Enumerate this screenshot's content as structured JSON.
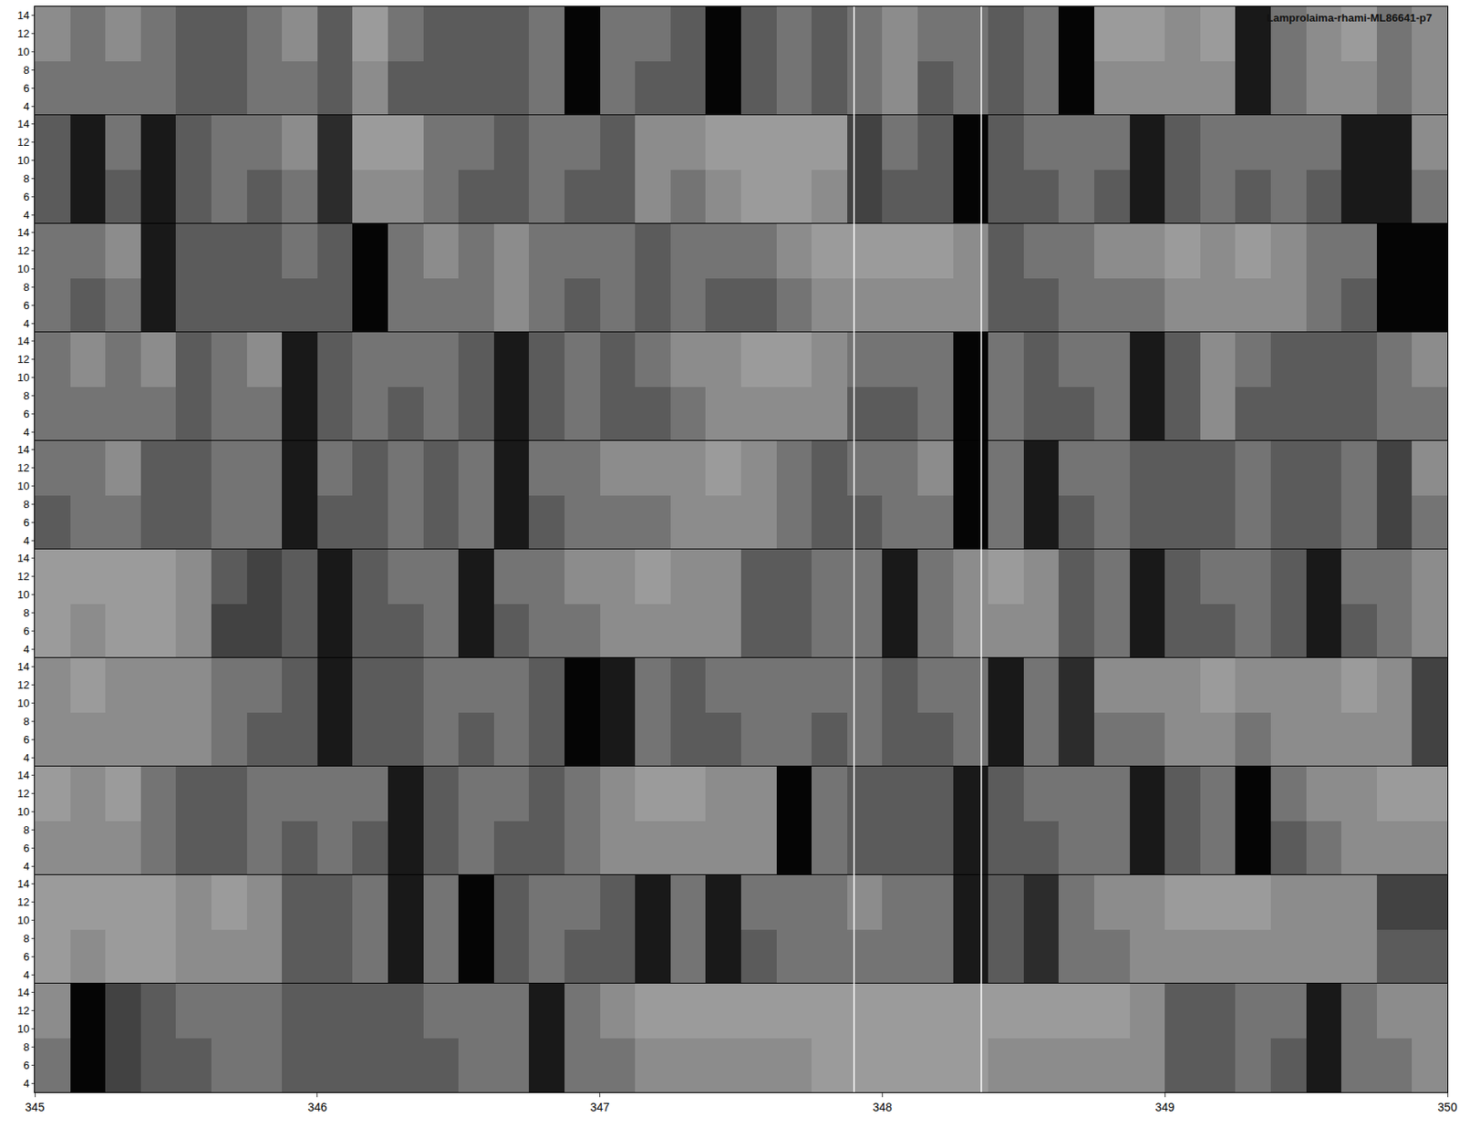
{
  "chart_data": {
    "type": "heatmap",
    "title": "Lamprolaima-rhami-ML86641-p7",
    "x": [
      345.0625,
      345.1875,
      345.3125,
      345.4375,
      345.5625,
      345.6875,
      345.8125,
      345.9375,
      346.0625,
      346.1875,
      346.3125,
      346.4375,
      346.5625,
      346.6875,
      346.8125,
      346.9375,
      347.0625,
      347.1875,
      347.3125,
      347.4375,
      347.5625,
      347.6875,
      347.8125,
      347.9375,
      348.0625,
      348.1875,
      348.3125,
      348.4375,
      348.5625,
      348.6875,
      348.8125,
      348.9375,
      349.0625,
      349.1875,
      349.3125,
      349.4375,
      349.5625,
      349.6875,
      349.8125,
      349.9375
    ],
    "y": [
      6,
      12
    ],
    "xlim": [
      345,
      350
    ],
    "xticks": [
      345,
      346,
      347,
      348,
      349,
      350
    ],
    "ylim": [
      3,
      15
    ],
    "yticks": [
      4,
      6,
      8,
      10,
      12,
      14
    ],
    "zlim": [
      0,
      9
    ],
    "vertical_lines": [
      347.9,
      348.35
    ],
    "panels": [
      {
        "z": [
          [
            4,
            4,
            4,
            4,
            5,
            5,
            4,
            4,
            5,
            3,
            5,
            5,
            5,
            5,
            4,
            9,
            4,
            5,
            5,
            9,
            5,
            4,
            5,
            4,
            3,
            5,
            4,
            5,
            4,
            9,
            3,
            3,
            3,
            3,
            8,
            4,
            3,
            3,
            4,
            3
          ],
          [
            3,
            4,
            3,
            4,
            5,
            5,
            4,
            3,
            5,
            2,
            4,
            5,
            5,
            5,
            4,
            9,
            4,
            4,
            5,
            9,
            5,
            4,
            5,
            4,
            3,
            4,
            4,
            5,
            4,
            9,
            2,
            2,
            3,
            2,
            8,
            4,
            3,
            2,
            4,
            3
          ]
        ]
      },
      {
        "z": [
          [
            5,
            8,
            5,
            8,
            5,
            4,
            5,
            4,
            7,
            3,
            3,
            4,
            5,
            5,
            4,
            5,
            5,
            3,
            4,
            3,
            2,
            2,
            3,
            6,
            5,
            5,
            9,
            5,
            5,
            4,
            5,
            8,
            5,
            4,
            5,
            4,
            5,
            8,
            8,
            4
          ],
          [
            5,
            8,
            4,
            8,
            5,
            4,
            4,
            3,
            7,
            2,
            2,
            4,
            4,
            5,
            4,
            4,
            5,
            3,
            3,
            2,
            2,
            2,
            2,
            6,
            4,
            5,
            9,
            5,
            4,
            4,
            4,
            8,
            5,
            4,
            4,
            4,
            4,
            8,
            8,
            3
          ]
        ]
      },
      {
        "z": [
          [
            4,
            5,
            4,
            8,
            5,
            5,
            5,
            5,
            5,
            9,
            4,
            4,
            4,
            3,
            4,
            5,
            4,
            5,
            4,
            5,
            5,
            4,
            3,
            3,
            3,
            3,
            3,
            5,
            5,
            4,
            4,
            4,
            3,
            3,
            3,
            3,
            4,
            5,
            9,
            9
          ],
          [
            4,
            4,
            3,
            8,
            5,
            5,
            5,
            4,
            5,
            9,
            4,
            3,
            4,
            3,
            4,
            4,
            4,
            5,
            4,
            4,
            4,
            3,
            2,
            2,
            2,
            2,
            3,
            5,
            4,
            4,
            3,
            3,
            2,
            3,
            2,
            3,
            4,
            4,
            9,
            9
          ]
        ]
      },
      {
        "z": [
          [
            4,
            4,
            4,
            4,
            5,
            4,
            4,
            8,
            5,
            4,
            5,
            4,
            5,
            8,
            5,
            4,
            5,
            5,
            4,
            3,
            3,
            3,
            3,
            5,
            5,
            4,
            9,
            4,
            5,
            5,
            4,
            8,
            5,
            3,
            5,
            5,
            5,
            5,
            4,
            4
          ],
          [
            4,
            3,
            4,
            3,
            5,
            4,
            3,
            8,
            5,
            4,
            4,
            4,
            5,
            8,
            5,
            4,
            5,
            4,
            3,
            3,
            2,
            2,
            3,
            4,
            4,
            4,
            9,
            4,
            5,
            4,
            4,
            8,
            5,
            3,
            4,
            5,
            5,
            5,
            4,
            3
          ]
        ]
      },
      {
        "z": [
          [
            5,
            4,
            4,
            5,
            5,
            4,
            4,
            8,
            5,
            5,
            4,
            5,
            4,
            8,
            5,
            4,
            4,
            4,
            3,
            3,
            3,
            4,
            5,
            5,
            4,
            4,
            9,
            4,
            8,
            5,
            4,
            5,
            5,
            5,
            4,
            5,
            5,
            4,
            6,
            4
          ],
          [
            4,
            4,
            3,
            5,
            5,
            4,
            4,
            8,
            4,
            5,
            4,
            5,
            4,
            8,
            4,
            4,
            3,
            3,
            3,
            2,
            3,
            4,
            5,
            4,
            4,
            3,
            9,
            4,
            8,
            4,
            4,
            5,
            5,
            5,
            4,
            5,
            5,
            4,
            6,
            3
          ]
        ]
      },
      {
        "z": [
          [
            2,
            3,
            2,
            2,
            3,
            6,
            6,
            5,
            8,
            5,
            5,
            4,
            8,
            5,
            4,
            4,
            3,
            3,
            3,
            3,
            5,
            5,
            4,
            4,
            8,
            4,
            3,
            3,
            3,
            5,
            4,
            8,
            5,
            5,
            4,
            5,
            8,
            5,
            4,
            3
          ],
          [
            2,
            2,
            2,
            2,
            3,
            5,
            6,
            5,
            8,
            5,
            4,
            4,
            8,
            4,
            4,
            3,
            3,
            2,
            3,
            3,
            5,
            5,
            4,
            4,
            8,
            4,
            3,
            2,
            3,
            5,
            4,
            8,
            5,
            4,
            4,
            5,
            8,
            4,
            4,
            3
          ]
        ]
      },
      {
        "z": [
          [
            3,
            3,
            3,
            3,
            3,
            4,
            5,
            5,
            8,
            5,
            5,
            4,
            5,
            4,
            5,
            9,
            8,
            4,
            5,
            5,
            4,
            4,
            5,
            4,
            5,
            5,
            4,
            8,
            4,
            7,
            4,
            4,
            3,
            3,
            4,
            3,
            3,
            3,
            3,
            6
          ],
          [
            3,
            2,
            3,
            3,
            3,
            4,
            4,
            5,
            8,
            5,
            5,
            4,
            4,
            4,
            5,
            9,
            8,
            4,
            5,
            4,
            4,
            4,
            4,
            4,
            5,
            4,
            4,
            8,
            4,
            7,
            3,
            3,
            3,
            2,
            3,
            3,
            3,
            2,
            3,
            6
          ]
        ]
      },
      {
        "z": [
          [
            3,
            3,
            3,
            4,
            5,
            5,
            4,
            5,
            4,
            5,
            8,
            5,
            4,
            5,
            5,
            4,
            3,
            3,
            3,
            3,
            3,
            9,
            4,
            5,
            5,
            5,
            8,
            5,
            5,
            4,
            4,
            8,
            5,
            4,
            9,
            5,
            4,
            3,
            3,
            3
          ],
          [
            2,
            3,
            2,
            4,
            5,
            5,
            4,
            4,
            4,
            4,
            8,
            5,
            4,
            4,
            5,
            4,
            3,
            2,
            2,
            3,
            3,
            9,
            4,
            5,
            5,
            5,
            8,
            5,
            4,
            4,
            4,
            8,
            5,
            4,
            9,
            4,
            3,
            3,
            2,
            2
          ]
        ]
      },
      {
        "z": [
          [
            2,
            3,
            2,
            2,
            3,
            3,
            3,
            5,
            5,
            4,
            8,
            4,
            9,
            5,
            4,
            5,
            5,
            8,
            4,
            8,
            5,
            4,
            4,
            4,
            4,
            4,
            8,
            5,
            7,
            4,
            4,
            3,
            3,
            3,
            3,
            3,
            3,
            3,
            5,
            5
          ],
          [
            2,
            2,
            2,
            2,
            3,
            2,
            3,
            5,
            5,
            4,
            8,
            4,
            9,
            5,
            4,
            4,
            5,
            8,
            4,
            8,
            4,
            4,
            4,
            3,
            4,
            4,
            8,
            5,
            7,
            4,
            3,
            3,
            2,
            2,
            2,
            3,
            3,
            3,
            6,
            6
          ]
        ]
      },
      {
        "z": [
          [
            4,
            9,
            6,
            5,
            5,
            4,
            4,
            5,
            5,
            5,
            5,
            5,
            4,
            4,
            8,
            4,
            4,
            3,
            3,
            3,
            3,
            3,
            2,
            2,
            2,
            2,
            2,
            3,
            3,
            3,
            3,
            3,
            5,
            5,
            4,
            5,
            8,
            4,
            4,
            3
          ],
          [
            3,
            9,
            6,
            5,
            4,
            4,
            4,
            5,
            5,
            5,
            5,
            4,
            4,
            4,
            8,
            4,
            3,
            2,
            2,
            2,
            2,
            2,
            2,
            2,
            2,
            2,
            2,
            2,
            2,
            2,
            2,
            3,
            5,
            5,
            4,
            4,
            8,
            4,
            3,
            3
          ]
        ]
      }
    ]
  }
}
